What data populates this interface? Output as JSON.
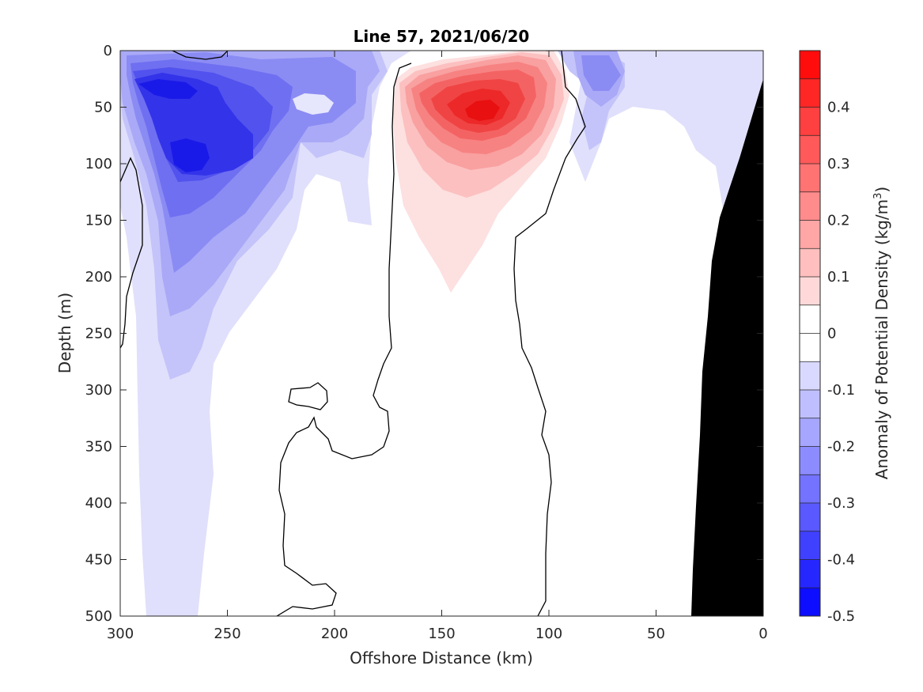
{
  "chart_data": {
    "type": "heatmap",
    "title": "Line 57, 2021/06/20",
    "xlabel": "Offshore Distance (km)",
    "ylabel": "Depth (m)",
    "colorbar_label": "Anomaly of Potential Density (kg/m",
    "colorbar_label_sup": "3",
    "colorbar_label_end": ")",
    "xlim": [
      300,
      0
    ],
    "ylim": [
      0,
      500
    ],
    "x_reversed": true,
    "y_reversed": true,
    "x_ticks": [
      300,
      250,
      200,
      150,
      100,
      50,
      0
    ],
    "y_ticks": [
      0,
      50,
      100,
      150,
      200,
      250,
      300,
      350,
      400,
      450,
      500
    ],
    "clim": [
      -0.5,
      0.5
    ],
    "colorbar_ticks": [
      "0.4",
      "0.3",
      "0.2",
      "0.1",
      "0",
      "-0.1",
      "-0.2",
      "-0.3",
      "-0.4",
      "-0.5"
    ],
    "colorbar_tick_values": [
      0.4,
      0.3,
      0.2,
      0.1,
      0,
      -0.1,
      -0.2,
      -0.3,
      -0.4,
      -0.5
    ],
    "colorbar_levels": 20,
    "colors": {
      "negative_max": "#0000ff",
      "positive_max": "#ff0000",
      "neutral": "#ffffff",
      "bathymetry": "#000000",
      "contour": "#000000"
    },
    "features": [
      {
        "name": "positive anomaly core",
        "x_km": 130,
        "depth_m": 70,
        "value": 0.4
      },
      {
        "name": "negative anomaly core shallow",
        "x_km": 278,
        "depth_m": 33,
        "value": -0.45
      },
      {
        "name": "negative anomaly core deep",
        "x_km": 268,
        "depth_m": 98,
        "value": -0.45
      }
    ]
  }
}
